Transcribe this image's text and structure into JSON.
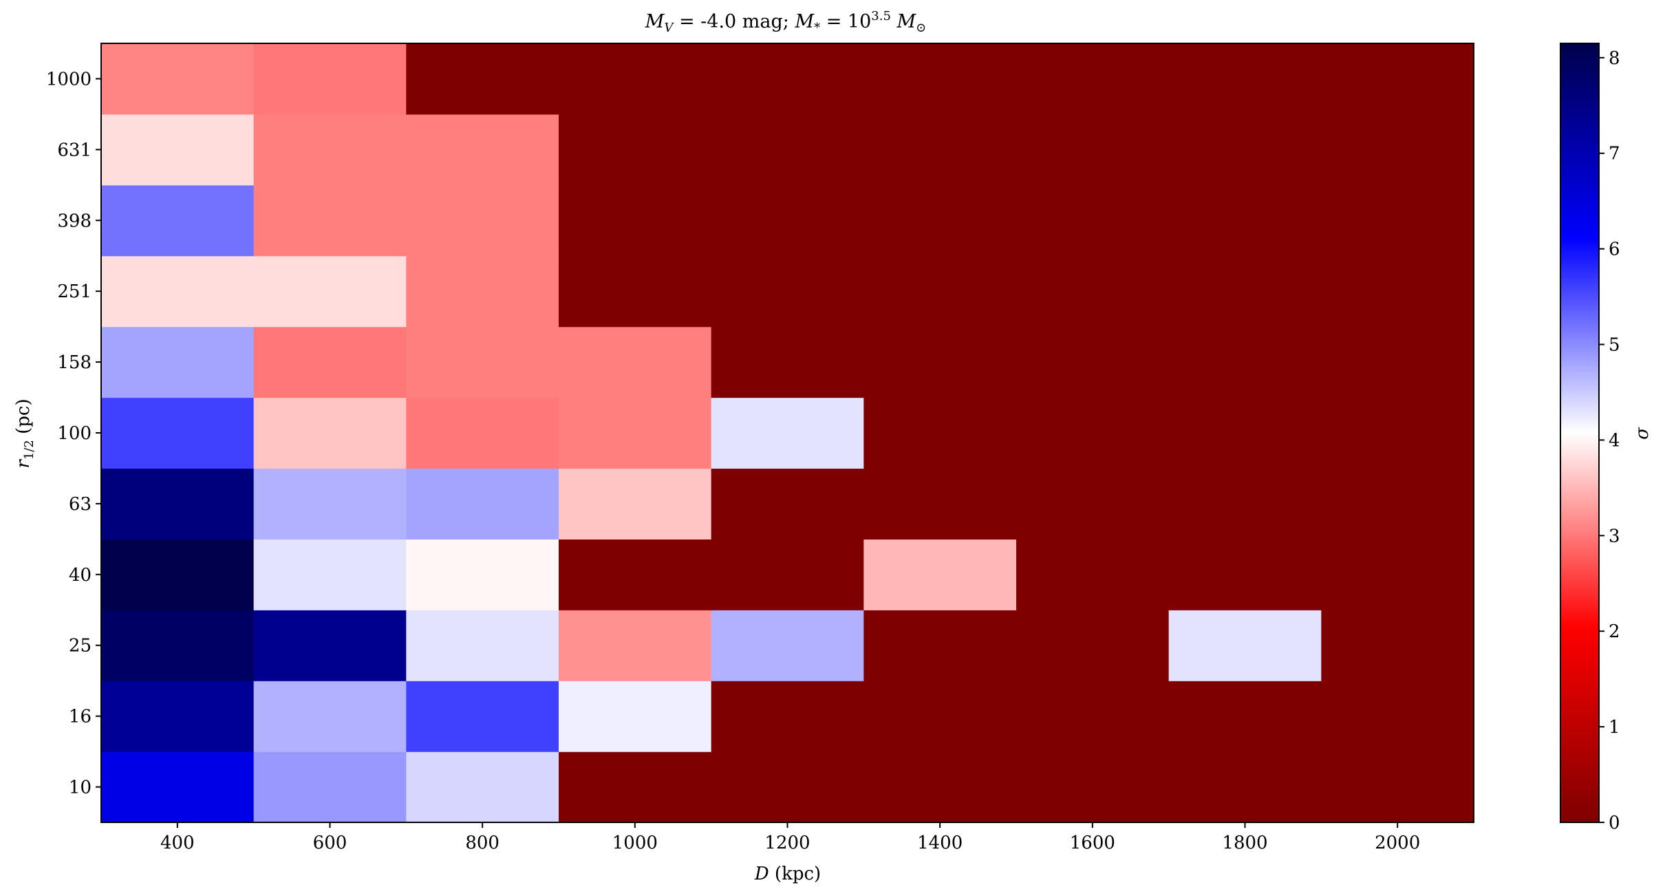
{
  "chart_data": {
    "type": "heatmap",
    "title": {
      "mv_symbol": "M",
      "mv_sub": "V",
      "mv_value": " = -4.0 mag; ",
      "ms_symbol": "M",
      "ms_sub": "*",
      "ms_eq": " = 10",
      "ms_exp": "3.5",
      "msun_symbol": " M",
      "msun_sub": "⊙"
    },
    "xlabel": {
      "symbol": "D",
      "unit": " (kpc)"
    },
    "ylabel": {
      "symbol": "r",
      "sub": "1/2",
      "unit": " (pc)"
    },
    "colorbar_label": "σ",
    "colormap": "seismic_r",
    "clim": [
      0,
      8.15
    ],
    "xlim": [
      300,
      2100
    ],
    "x_cell_edges": [
      300,
      500,
      700,
      900,
      1100,
      1300,
      1500,
      1700,
      1900,
      2100
    ],
    "x_ticks": [
      400,
      600,
      800,
      1000,
      1200,
      1400,
      1600,
      1800,
      2000
    ],
    "y_categories": [
      "10",
      "16",
      "25",
      "40",
      "63",
      "100",
      "158",
      "251",
      "398",
      "631",
      "1000"
    ],
    "colorbar_ticks": [
      0,
      1,
      2,
      3,
      4,
      5,
      6,
      7,
      8
    ],
    "values": [
      [
        6.4,
        4.9,
        4.4,
        0,
        0,
        0,
        0,
        0,
        0
      ],
      [
        7.3,
        4.7,
        5.6,
        4.2,
        0,
        0,
        0,
        0,
        0
      ],
      [
        7.9,
        7.4,
        4.3,
        3.2,
        4.7,
        0,
        0,
        4.3,
        0
      ],
      [
        8.15,
        4.3,
        4.0,
        0,
        0,
        3.5,
        0,
        0,
        0
      ],
      [
        7.6,
        4.7,
        4.8,
        3.6,
        0,
        0,
        0,
        0,
        0
      ],
      [
        5.6,
        3.6,
        3.0,
        3.05,
        4.3,
        0,
        0,
        0,
        0
      ],
      [
        4.8,
        3.0,
        3.05,
        3.05,
        0,
        0,
        0,
        0,
        0
      ],
      [
        3.8,
        3.8,
        3.05,
        0,
        0,
        0,
        0,
        0,
        0
      ],
      [
        5.2,
        3.05,
        3.05,
        0,
        0,
        0,
        0,
        0,
        0
      ],
      [
        3.8,
        3.05,
        3.05,
        0,
        0,
        0,
        0,
        0,
        0
      ],
      [
        3.1,
        3.0,
        0,
        0,
        0,
        0,
        0,
        0,
        0
      ]
    ]
  }
}
